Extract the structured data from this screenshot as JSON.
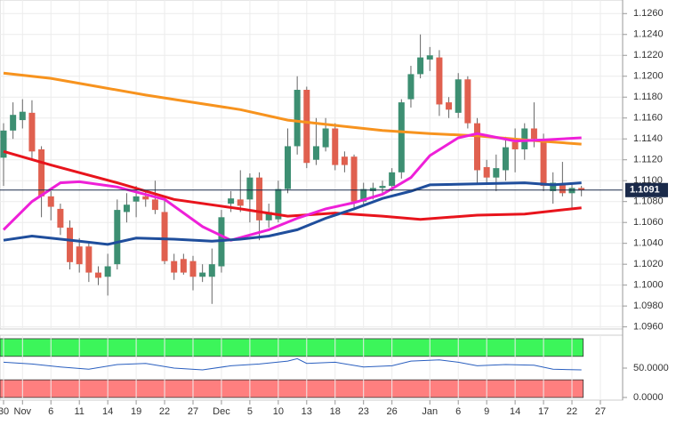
{
  "chart_data": [
    {
      "type": "candlestick",
      "x": [
        0,
        1,
        2,
        3,
        4,
        5,
        6,
        7,
        8,
        9,
        10,
        11,
        12,
        13,
        14,
        15,
        16,
        17,
        18,
        19,
        20,
        21,
        22,
        23,
        24,
        25,
        26,
        27,
        28,
        29,
        30,
        31,
        32,
        33,
        34,
        35,
        36,
        37,
        38,
        39,
        40,
        41,
        42,
        43,
        44,
        45,
        46,
        47,
        48,
        49,
        50,
        51,
        52,
        53,
        54,
        55,
        56,
        57,
        58,
        59,
        60,
        61
      ],
      "open": [
        1.1122,
        1.1148,
        1.1158,
        1.1165,
        1.113,
        1.1085,
        1.1073,
        1.1055,
        1.1037,
        1.1037,
        1.1012,
        1.1008,
        1.102,
        1.107,
        1.108,
        1.1085,
        1.1082,
        1.107,
        1.1023,
        1.1025,
        1.1023,
        1.1008,
        1.1008,
        1.1018,
        1.1078,
        1.1082,
        1.1082,
        1.1103,
        1.1062,
        1.1063,
        1.1092,
        1.1133,
        1.1187,
        1.112,
        1.1132,
        1.115,
        1.1123,
        1.1123,
        1.108,
        1.109,
        1.1093,
        1.1095,
        1.1108,
        1.1178,
        1.1202,
        1.1216,
        1.1218,
        1.1175,
        1.1165,
        1.1197,
        1.1155,
        1.1113,
        1.1103,
        1.111,
        1.1137,
        1.113,
        1.115,
        1.114,
        1.109,
        1.1097,
        1.1088,
        1.1093
      ],
      "high": [
        1.1155,
        1.1175,
        1.1178,
        1.1177,
        1.1133,
        1.109,
        1.1078,
        1.1062,
        1.1045,
        1.104,
        1.1018,
        1.103,
        1.1082,
        1.1088,
        1.1095,
        1.109,
        1.11,
        1.1082,
        1.103,
        1.103,
        1.1028,
        1.102,
        1.1035,
        1.1072,
        1.109,
        1.111,
        1.1107,
        1.1108,
        1.1078,
        1.11,
        1.115,
        1.12,
        1.119,
        1.116,
        1.116,
        1.1155,
        1.1128,
        1.1125,
        1.1098,
        1.1098,
        1.11,
        1.1112,
        1.1178,
        1.121,
        1.124,
        1.1228,
        1.1225,
        1.118,
        1.1203,
        1.12,
        1.116,
        1.112,
        1.1125,
        1.1142,
        1.115,
        1.1155,
        1.1175,
        1.1145,
        1.1108,
        1.1118,
        1.1098,
        1.1095
      ],
      "low": [
        1.1095,
        1.114,
        1.115,
        1.112,
        1.1065,
        1.1062,
        1.1048,
        1.1015,
        1.1012,
        1.1003,
        1.1,
        1.099,
        1.1015,
        1.106,
        1.1065,
        1.1075,
        1.1068,
        1.102,
        1.1005,
        1.101,
        1.0995,
        1.1003,
        1.0982,
        1.1012,
        1.107,
        1.107,
        1.106,
        1.1043,
        1.1055,
        1.106,
        1.1088,
        1.1125,
        1.1112,
        1.1115,
        1.1128,
        1.111,
        1.1108,
        1.1072,
        1.1075,
        1.1082,
        1.1088,
        1.109,
        1.1102,
        1.117,
        1.1198,
        1.1205,
        1.1162,
        1.116,
        1.116,
        1.115,
        1.1098,
        1.1098,
        1.109,
        1.11,
        1.1108,
        1.112,
        1.1132,
        1.109,
        1.1078,
        1.1085,
        1.1072,
        1.1085
      ],
      "close": [
        1.1148,
        1.1163,
        1.1166,
        1.1128,
        1.1085,
        1.1075,
        1.1055,
        1.1022,
        1.102,
        1.1012,
        1.1007,
        1.1018,
        1.1072,
        1.1077,
        1.1085,
        1.1082,
        1.1072,
        1.1023,
        1.1012,
        1.1012,
        1.1008,
        1.1012,
        1.102,
        1.1065,
        1.1083,
        1.1076,
        1.1103,
        1.1062,
        1.107,
        1.1092,
        1.1133,
        1.1187,
        1.1117,
        1.1133,
        1.115,
        1.1115,
        1.1115,
        1.108,
        1.1092,
        1.1093,
        1.1095,
        1.1108,
        1.1175,
        1.1202,
        1.1218,
        1.122,
        1.1173,
        1.1168,
        1.1197,
        1.1155,
        1.111,
        1.1103,
        1.1112,
        1.1132,
        1.113,
        1.115,
        1.114,
        1.1095,
        1.1098,
        1.1088,
        1.1093,
        1.1091
      ],
      "up_color": "#3d8f72",
      "down_color": "#e0604f",
      "series": [
        {
          "color": "#f7931e",
          "x": [
            0,
            5,
            10,
            15,
            20,
            25,
            30,
            35,
            40,
            45,
            50,
            55,
            61
          ],
          "values": [
            1.1203,
            1.1198,
            1.119,
            1.1182,
            1.1175,
            1.1168,
            1.1158,
            1.1153,
            1.1148,
            1.1145,
            1.1143,
            1.1139,
            1.1135
          ]
        },
        {
          "color": "#e8141c",
          "x": [
            0,
            5,
            12,
            18,
            25,
            30,
            35,
            40,
            44,
            50,
            55,
            61
          ],
          "values": [
            1.1128,
            1.1115,
            1.1098,
            1.1082,
            1.1073,
            1.1066,
            1.1069,
            1.1066,
            1.1063,
            1.1067,
            1.1068,
            1.1074
          ]
        },
        {
          "color": "#ee20d8",
          "x": [
            0,
            3,
            6,
            8,
            12,
            17,
            21,
            24,
            28,
            31,
            34,
            37,
            40,
            43,
            45,
            48,
            50,
            54,
            57,
            61
          ],
          "values": [
            1.1053,
            1.108,
            1.1098,
            1.1099,
            1.1094,
            1.1082,
            1.1056,
            1.1043,
            1.1053,
            1.1064,
            1.1073,
            1.1079,
            1.1087,
            1.1103,
            1.1124,
            1.1141,
            1.1145,
            1.1138,
            1.1139,
            1.1141
          ]
        },
        {
          "color": "#1f4e9c",
          "x": [
            0,
            3,
            8,
            11,
            14,
            18,
            22,
            25,
            28,
            31,
            34,
            37,
            40,
            43,
            45,
            50,
            55,
            58,
            61
          ],
          "values": [
            1.1043,
            1.1047,
            1.1042,
            1.1039,
            1.1045,
            1.1044,
            1.1042,
            1.1044,
            1.1047,
            1.1053,
            1.1064,
            1.1073,
            1.1083,
            1.109,
            1.1096,
            1.1097,
            1.1098,
            1.1096,
            1.1098
          ]
        }
      ],
      "last_price": {
        "value": 1.1091,
        "label": "1.1091"
      },
      "xlim": [
        -0.375,
        65.35
      ],
      "ylim": [
        1.0958,
        1.1273
      ],
      "yticks": [
        {
          "value": 1.096,
          "label": "1.0960"
        },
        {
          "value": 1.098,
          "label": "1.0980"
        },
        {
          "value": 1.1,
          "label": "1.1000"
        },
        {
          "value": 1.102,
          "label": "1.1020"
        },
        {
          "value": 1.104,
          "label": "1.1040"
        },
        {
          "value": 1.106,
          "label": "1.1060"
        },
        {
          "value": 1.108,
          "label": "1.1080"
        },
        {
          "value": 1.11,
          "label": "1.1100"
        },
        {
          "value": 1.112,
          "label": "1.1120"
        },
        {
          "value": 1.114,
          "label": "1.1140"
        },
        {
          "value": 1.116,
          "label": "1.1160"
        },
        {
          "value": 1.118,
          "label": "1.1180"
        },
        {
          "value": 1.12,
          "label": "1.1200"
        },
        {
          "value": 1.122,
          "label": "1.1220"
        },
        {
          "value": 1.124,
          "label": "1.1240"
        },
        {
          "value": 1.126,
          "label": "1.1260"
        }
      ],
      "grid": true
    },
    {
      "type": "line",
      "x": [
        0,
        3,
        6,
        9,
        12,
        15,
        18,
        21,
        24,
        27,
        30,
        31,
        32,
        35,
        38,
        41,
        43,
        46,
        48,
        50,
        53,
        56,
        58,
        61
      ],
      "values": [
        60,
        57,
        52,
        48,
        56,
        58,
        50,
        47,
        54,
        57,
        62,
        66,
        58,
        60,
        52,
        54,
        62,
        64,
        60,
        54,
        56,
        55,
        48,
        47
      ],
      "color": "#2a5fbf",
      "bands": [
        {
          "range": [
            70,
            100
          ],
          "color": "#3cf55a"
        },
        {
          "range": [
            0,
            30
          ],
          "color": "#ff7f7f"
        }
      ],
      "xlim": [
        -0.375,
        65.35
      ],
      "ylim": [
        -4.5,
        106
      ],
      "yticks": [
        {
          "value": 50,
          "label": "50.0000"
        },
        {
          "value": 0,
          "label": "0.0000"
        }
      ],
      "xticks": [
        {
          "value": 0,
          "label": "30"
        },
        {
          "value": 2,
          "label": "Nov"
        },
        {
          "value": 5,
          "label": "6"
        },
        {
          "value": 8,
          "label": "11"
        },
        {
          "value": 11,
          "label": "14"
        },
        {
          "value": 14,
          "label": "19"
        },
        {
          "value": 17,
          "label": "22"
        },
        {
          "value": 20,
          "label": "27"
        },
        {
          "value": 23,
          "label": "Dec"
        },
        {
          "value": 26,
          "label": "5"
        },
        {
          "value": 29,
          "label": "10"
        },
        {
          "value": 32,
          "label": "13"
        },
        {
          "value": 35,
          "label": "18"
        },
        {
          "value": 38,
          "label": "23"
        },
        {
          "value": 41,
          "label": "26"
        },
        {
          "value": 45,
          "label": "Jan"
        },
        {
          "value": 48,
          "label": "6"
        },
        {
          "value": 51,
          "label": "9"
        },
        {
          "value": 54,
          "label": "14"
        },
        {
          "value": 57,
          "label": "17"
        },
        {
          "value": 60,
          "label": "22"
        },
        {
          "value": 63,
          "label": "27"
        }
      ],
      "grid": true
    }
  ]
}
